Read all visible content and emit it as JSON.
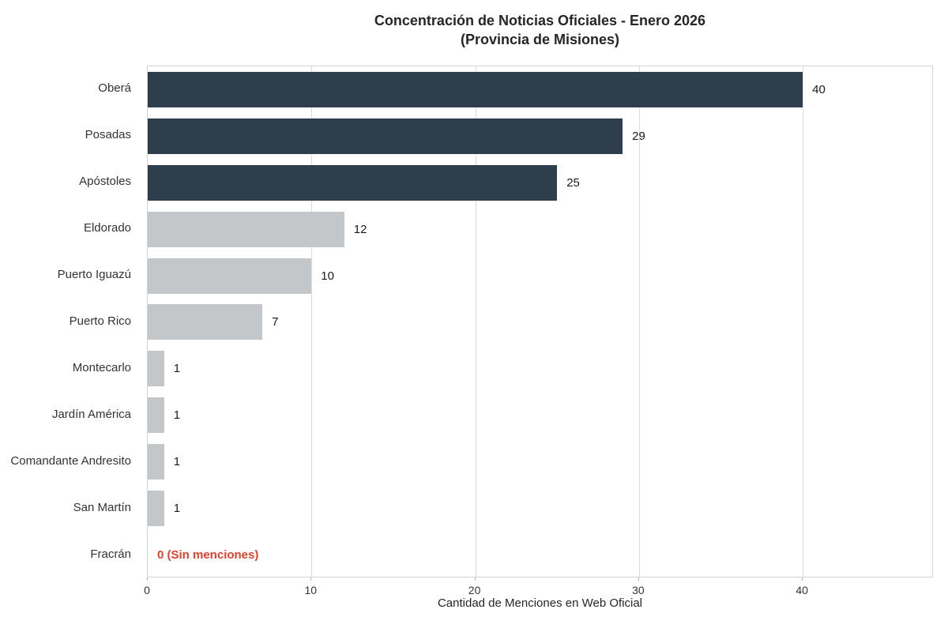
{
  "chart_data": {
    "type": "bar",
    "orientation": "horizontal",
    "title": "Concentración de Noticias Oficiales - Enero 2026",
    "subtitle": "(Provincia de Misiones)",
    "xlabel": "Cantidad de Menciones en Web Oficial",
    "xlim": [
      0,
      48
    ],
    "xticks": [
      0,
      10,
      20,
      30,
      40
    ],
    "grid": "vertical",
    "legend": "none",
    "categories": [
      "Oberá",
      "Posadas",
      "Apóstoles",
      "Eldorado",
      "Puerto Iguazú",
      "Puerto Rico",
      "Montecarlo",
      "Jardín América",
      "Comandante Andresito",
      "San Martín",
      "Fracrán"
    ],
    "values": [
      40,
      29,
      25,
      12,
      10,
      7,
      1,
      1,
      1,
      1,
      0
    ],
    "value_labels": [
      "40",
      "29",
      "25",
      "12",
      "10",
      "7",
      "1",
      "1",
      "1",
      "1",
      "0 (Sin menciones)"
    ],
    "bar_colors": [
      "#2f3e4d",
      "#2f3e4d",
      "#2f3e4d",
      "#c3c7ca",
      "#c3c7ca",
      "#c3c7ca",
      "#c3c7ca",
      "#c3c7ca",
      "#c3c7ca",
      "#c3c7ca",
      null
    ],
    "colors": {
      "dark_bar": "#2f3e4d",
      "light_bar": "#c3c7ca",
      "zero_label": "#d9432f",
      "value_label": "#1a1a1a",
      "gridline": "#dcdcdc",
      "plot_border": "#d4d4d4"
    }
  }
}
